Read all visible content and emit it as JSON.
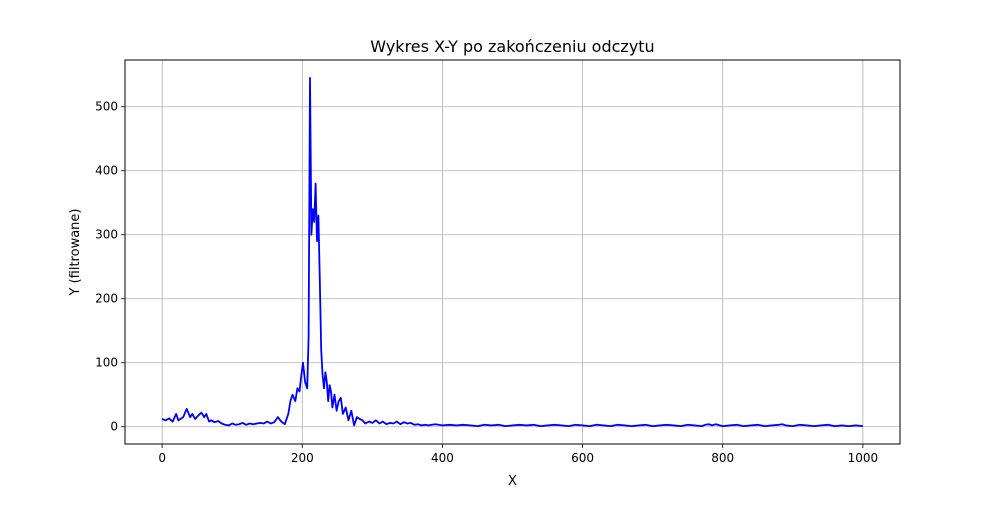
{
  "chart_data": {
    "type": "line",
    "title": "Wykres X-Y po zakończeniu odczytu",
    "xlabel": "X",
    "ylabel": "Y (filtrowane)",
    "xlim": [
      -53,
      1053
    ],
    "ylim": [
      -27,
      573
    ],
    "xticks": [
      0,
      200,
      400,
      600,
      800,
      1000
    ],
    "yticks": [
      0,
      100,
      200,
      300,
      400,
      500
    ],
    "grid": true,
    "series": [
      {
        "color": "#0000ff",
        "x": [
          0,
          5,
          10,
          15,
          20,
          23,
          26,
          30,
          35,
          40,
          43,
          47,
          52,
          56,
          60,
          63,
          67,
          70,
          75,
          80,
          85,
          90,
          95,
          100,
          105,
          110,
          115,
          120,
          125,
          130,
          140,
          145,
          150,
          155,
          160,
          165,
          170,
          175,
          180,
          183,
          186,
          190,
          193,
          196,
          198,
          201,
          204,
          207,
          209,
          211,
          213,
          215,
          217,
          219,
          221,
          223,
          225,
          227,
          229,
          231,
          233,
          235,
          237,
          239,
          241,
          243,
          246,
          249,
          252,
          255,
          258,
          262,
          266,
          270,
          274,
          278,
          282,
          286,
          290,
          295,
          300,
          305,
          310,
          315,
          320,
          325,
          330,
          335,
          340,
          345,
          350,
          355,
          360,
          365,
          370,
          375,
          380,
          385,
          390,
          400,
          410,
          420,
          430,
          440,
          450,
          460,
          470,
          480,
          490,
          500,
          510,
          520,
          530,
          540,
          550,
          560,
          570,
          580,
          590,
          600,
          610,
          620,
          630,
          640,
          650,
          660,
          670,
          680,
          690,
          700,
          710,
          720,
          730,
          740,
          750,
          760,
          770,
          775,
          780,
          785,
          790,
          800,
          810,
          820,
          830,
          840,
          850,
          860,
          870,
          880,
          885,
          890,
          900,
          910,
          920,
          930,
          940,
          950,
          960,
          970,
          980,
          990,
          1000
        ],
        "y": [
          12,
          10,
          13,
          8,
          20,
          10,
          12,
          15,
          28,
          15,
          20,
          12,
          18,
          22,
          15,
          20,
          8,
          10,
          7,
          9,
          5,
          3,
          2,
          5,
          3,
          4,
          6,
          3,
          5,
          4,
          6,
          5,
          8,
          5,
          7,
          15,
          8,
          4,
          20,
          40,
          50,
          40,
          60,
          55,
          75,
          100,
          70,
          60,
          140,
          545,
          300,
          340,
          320,
          380,
          290,
          330,
          230,
          120,
          80,
          60,
          85,
          70,
          40,
          65,
          55,
          30,
          50,
          25,
          40,
          45,
          20,
          30,
          10,
          25,
          2,
          15,
          12,
          10,
          5,
          8,
          6,
          10,
          5,
          8,
          4,
          6,
          5,
          8,
          4,
          7,
          5,
          6,
          3,
          4,
          2,
          3,
          2,
          3,
          4,
          2,
          3,
          2,
          3,
          2,
          1,
          3,
          2,
          3,
          1,
          2,
          3,
          2,
          3,
          1,
          2,
          3,
          2,
          1,
          3,
          2,
          1,
          3,
          2,
          1,
          3,
          2,
          1,
          2,
          3,
          1,
          2,
          3,
          2,
          1,
          3,
          2,
          1,
          3,
          4,
          2,
          4,
          1,
          2,
          3,
          1,
          2,
          3,
          1,
          2,
          3,
          4,
          2,
          1,
          3,
          2,
          1,
          2,
          3,
          1,
          2,
          1,
          2,
          1
        ]
      }
    ]
  }
}
